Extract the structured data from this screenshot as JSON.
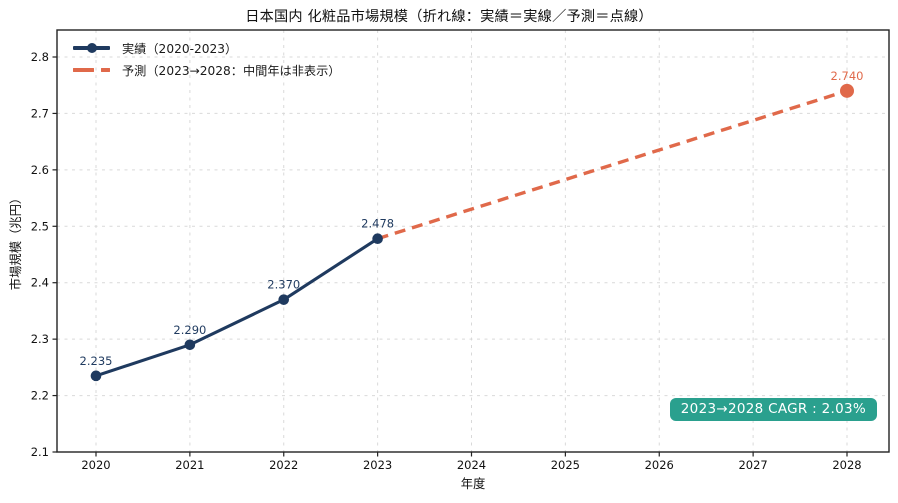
{
  "chart_data": {
    "type": "line",
    "title": "日本国内 化粧品市場規模（折れ線：実績＝実線／予測＝点線）",
    "xlabel": "年度",
    "ylabel": "市場規模（兆円）",
    "x_ticks": [
      2020,
      2021,
      2022,
      2023,
      2024,
      2025,
      2026,
      2027,
      2028
    ],
    "y_ticks": [
      2.1,
      2.2,
      2.3,
      2.4,
      2.5,
      2.6,
      2.7,
      2.8
    ],
    "xlim": [
      2019.58,
      2028.45
    ],
    "ylim": [
      2.1,
      2.848
    ],
    "grid": "dashed-both-axes",
    "legend_position": "upper-left",
    "series": [
      {
        "name": "実績（2020-2023）",
        "style": "solid",
        "color": "#1f3a5f",
        "x": [
          2020,
          2021,
          2022,
          2023
        ],
        "values": [
          2.235,
          2.29,
          2.37,
          2.478
        ],
        "point_labels": [
          "2.235",
          "2.290",
          "2.370",
          "2.478"
        ],
        "marker_radius": 5.3
      },
      {
        "name": "予測（2023→2028：中間年は非表示）",
        "style": "dashed",
        "color": "#e0694a",
        "x": [
          2023,
          2028
        ],
        "values": [
          2.478,
          2.74
        ],
        "point_labels": [
          "",
          "2.740"
        ],
        "marker_radius": 7
      }
    ],
    "annotation": {
      "text": "2023→2028 CAGR : 2.03%",
      "background": "#2aa08e",
      "text_color": "#ffffff"
    }
  },
  "colors": {
    "navy": "#1f3a5f",
    "coral": "#e0694a",
    "teal": "#2aa08e",
    "grid": "#d9d9d9",
    "spine": "#222222"
  }
}
